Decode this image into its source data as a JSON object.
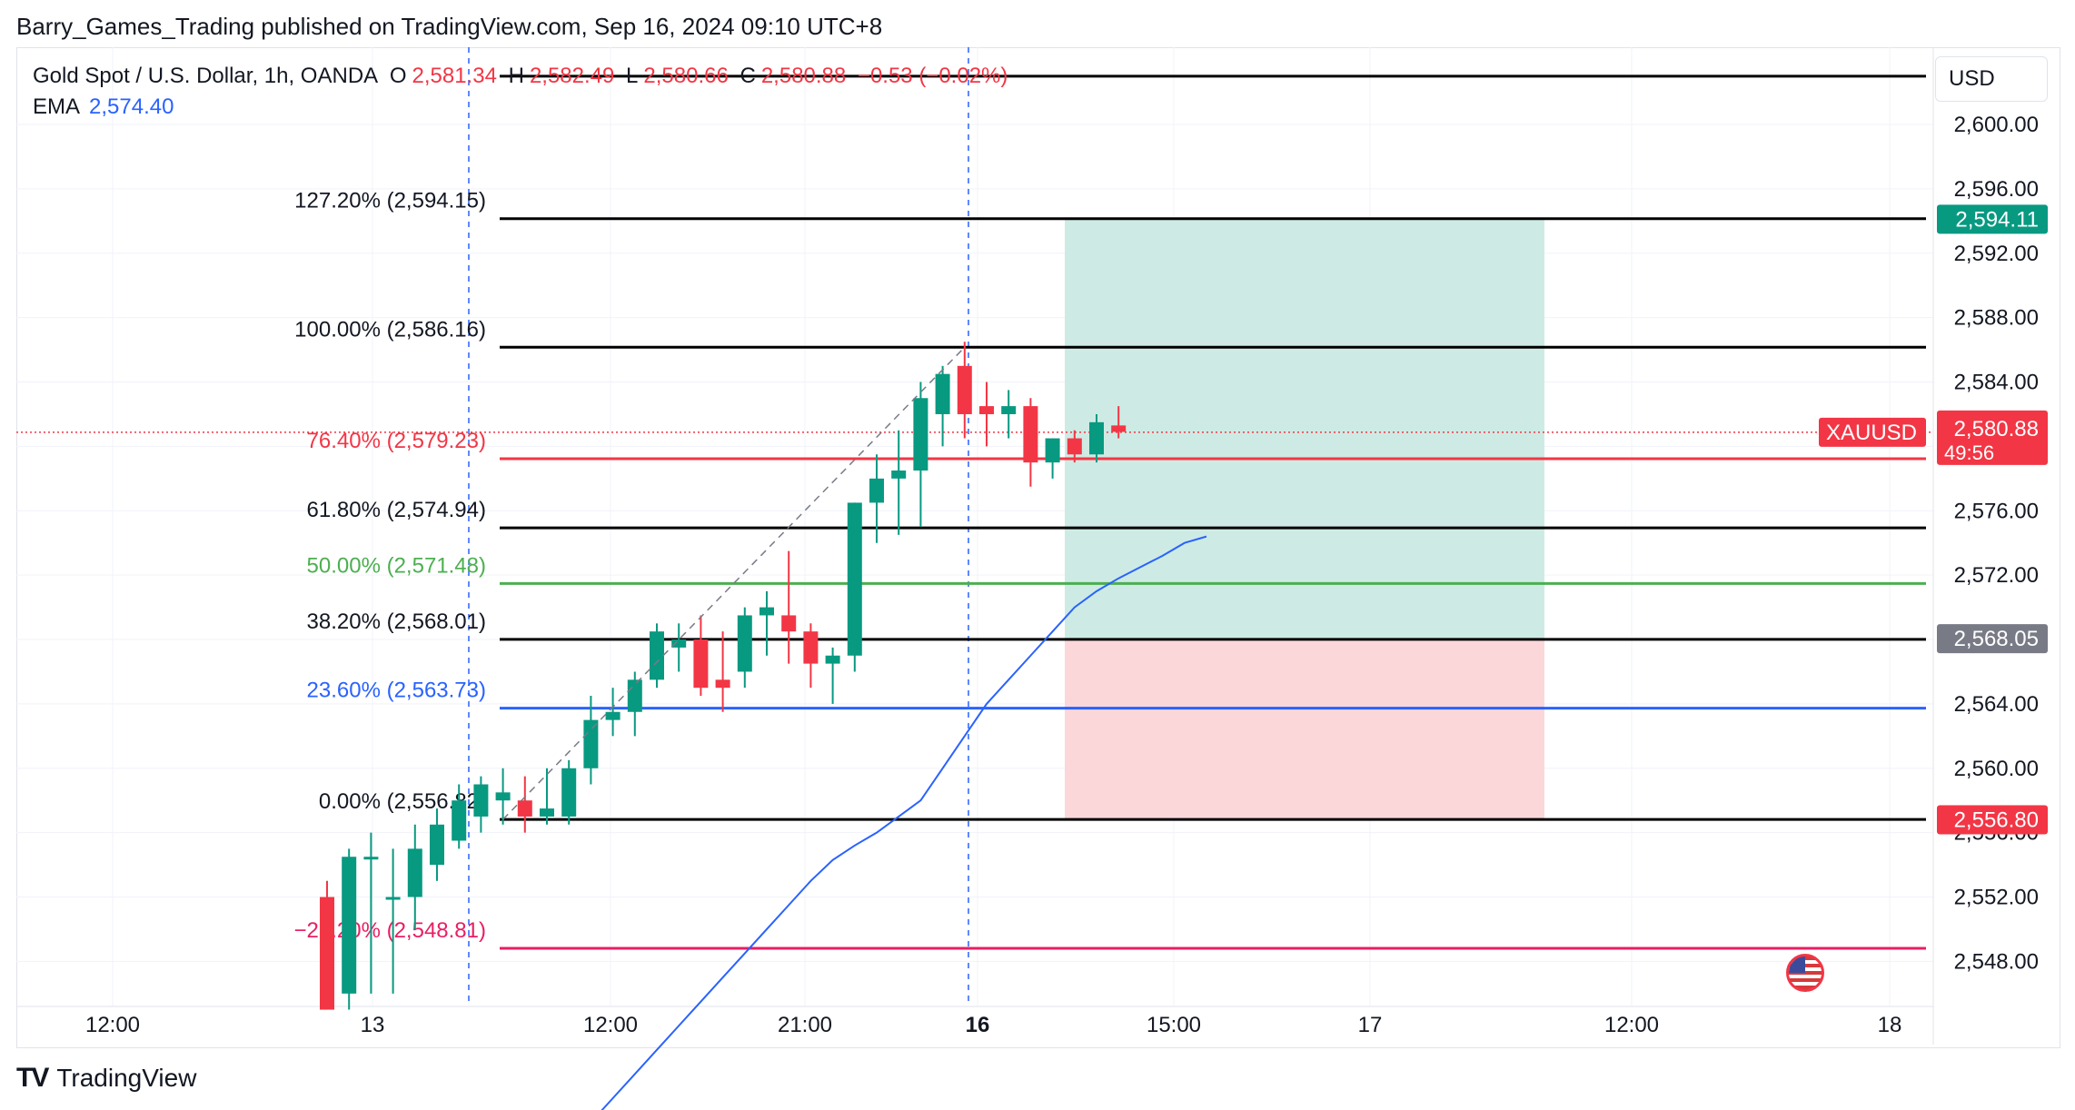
{
  "publisher_line": "Barry_Games_Trading published on TradingView.com, Sep 16, 2024 09:10 UTC+8",
  "header": {
    "symbol": "Gold Spot / U.S. Dollar, 1h, OANDA",
    "o_label": "O",
    "o_value": "2,581.34",
    "h_label": "H",
    "h_value": "2,582.49",
    "l_label": "L",
    "l_value": "2,580.66",
    "c_label": "C",
    "c_value": "2,580.88",
    "change": "−0.53 (−0.02%)"
  },
  "ema": {
    "label": "EMA",
    "value": "2,574.40"
  },
  "currency_button": "USD",
  "footer_brand": "TradingView",
  "colors": {
    "up": "#089981",
    "down": "#f23645",
    "ema": "#2962ff",
    "profit_zone": "#cdebe4",
    "loss_zone": "#fbd7da",
    "fib_black": "#000000",
    "fib_red": "#f23645",
    "fib_green": "#4caf50",
    "fib_blue": "#2962ff",
    "fib_pink": "#e91e63"
  },
  "chart_data": {
    "type": "candlestick",
    "ylim": [
      2545.2,
      2604.8
    ],
    "x_ticks": [
      "12:00",
      "13",
      "12:00",
      "21:00",
      "16",
      "15:00",
      "17",
      "12:00",
      "18"
    ],
    "y_ticks": [
      "2,548.00",
      "2,552.00",
      "2,556.00",
      "2,560.00",
      "2,564.00",
      "2,568.00",
      "2,572.00",
      "2,576.00",
      "2,580.00",
      "2,584.00",
      "2,588.00",
      "2,592.00",
      "2,596.00",
      "2,600.00"
    ],
    "candles": [
      {
        "o": 2552.0,
        "h": 2553.0,
        "l": 2545.0,
        "c": 2545.0
      },
      {
        "o": 2546.0,
        "h": 2555.0,
        "l": 2545.0,
        "c": 2554.5
      },
      {
        "o": 2554.5,
        "h": 2556.0,
        "l": 2546.0,
        "c": 2554.5
      },
      {
        "o": 2552.0,
        "h": 2555.0,
        "l": 2546.0,
        "c": 2552.0
      },
      {
        "o": 2552.0,
        "h": 2556.5,
        "l": 2550.0,
        "c": 2555.0
      },
      {
        "o": 2554.0,
        "h": 2557.5,
        "l": 2553.0,
        "c": 2556.5
      },
      {
        "o": 2555.5,
        "h": 2559.0,
        "l": 2555.0,
        "c": 2558.0
      },
      {
        "o": 2557.0,
        "h": 2559.5,
        "l": 2556.0,
        "c": 2559.0
      },
      {
        "o": 2558.0,
        "h": 2560.0,
        "l": 2556.5,
        "c": 2558.5
      },
      {
        "o": 2558.0,
        "h": 2559.5,
        "l": 2556.0,
        "c": 2557.0
      },
      {
        "o": 2557.0,
        "h": 2560.0,
        "l": 2556.5,
        "c": 2557.5
      },
      {
        "o": 2557.0,
        "h": 2560.5,
        "l": 2556.5,
        "c": 2560.0
      },
      {
        "o": 2560.0,
        "h": 2564.5,
        "l": 2559.0,
        "c": 2563.0
      },
      {
        "o": 2563.0,
        "h": 2565.0,
        "l": 2562.0,
        "c": 2563.5
      },
      {
        "o": 2563.5,
        "h": 2566.0,
        "l": 2562.0,
        "c": 2565.5
      },
      {
        "o": 2565.5,
        "h": 2569.0,
        "l": 2565.0,
        "c": 2568.5
      },
      {
        "o": 2567.5,
        "h": 2569.0,
        "l": 2566.0,
        "c": 2568.0
      },
      {
        "o": 2568.0,
        "h": 2569.5,
        "l": 2564.5,
        "c": 2565.0
      },
      {
        "o": 2565.5,
        "h": 2568.5,
        "l": 2563.5,
        "c": 2565.0
      },
      {
        "o": 2566.0,
        "h": 2570.0,
        "l": 2565.0,
        "c": 2569.5
      },
      {
        "o": 2569.5,
        "h": 2571.0,
        "l": 2567.0,
        "c": 2570.0
      },
      {
        "o": 2569.5,
        "h": 2573.5,
        "l": 2566.5,
        "c": 2568.5
      },
      {
        "o": 2568.5,
        "h": 2569.0,
        "l": 2565.0,
        "c": 2566.5
      },
      {
        "o": 2566.5,
        "h": 2567.5,
        "l": 2564.0,
        "c": 2567.0
      },
      {
        "o": 2567.0,
        "h": 2576.5,
        "l": 2566.0,
        "c": 2576.5
      },
      {
        "o": 2576.5,
        "h": 2579.5,
        "l": 2574.0,
        "c": 2578.0
      },
      {
        "o": 2578.0,
        "h": 2581.0,
        "l": 2574.5,
        "c": 2578.5
      },
      {
        "o": 2578.5,
        "h": 2584.0,
        "l": 2575.0,
        "c": 2583.0
      },
      {
        "o": 2582.0,
        "h": 2585.0,
        "l": 2580.0,
        "c": 2584.5
      },
      {
        "o": 2585.0,
        "h": 2586.5,
        "l": 2580.5,
        "c": 2582.0
      },
      {
        "o": 2582.5,
        "h": 2584.0,
        "l": 2580.0,
        "c": 2582.0
      },
      {
        "o": 2582.0,
        "h": 2583.5,
        "l": 2580.5,
        "c": 2582.5
      },
      {
        "o": 2582.5,
        "h": 2583.0,
        "l": 2577.5,
        "c": 2579.0
      },
      {
        "o": 2579.0,
        "h": 2580.5,
        "l": 2578.0,
        "c": 2580.5
      },
      {
        "o": 2580.5,
        "h": 2581.0,
        "l": 2579.0,
        "c": 2579.5
      },
      {
        "o": 2579.5,
        "h": 2582.0,
        "l": 2579.0,
        "c": 2581.5
      },
      {
        "o": 2581.3,
        "h": 2582.5,
        "l": 2580.5,
        "c": 2580.9
      }
    ],
    "ema": [
      2538.0,
      2539.5,
      2541.0,
      2542.5,
      2544.0,
      2545.5,
      2547.0,
      2548.5,
      2550.0,
      2551.5,
      2553.0,
      2554.3,
      2555.2,
      2556.0,
      2557.0,
      2558.0,
      2560.0,
      2562.0,
      2564.0,
      2565.5,
      2567.0,
      2568.5,
      2570.0,
      2571.0,
      2571.8,
      2572.5,
      2573.2,
      2574.0,
      2574.4
    ],
    "fib_levels": [
      {
        "label": "127.20% (2,594.15)",
        "value": 2594.15,
        "color": "#000000"
      },
      {
        "label": "100.00% (2,586.16)",
        "value": 2586.16,
        "color": "#000000"
      },
      {
        "label": "76.40% (2,579.23)",
        "value": 2579.23,
        "color": "#f23645"
      },
      {
        "label": "61.80% (2,574.94)",
        "value": 2574.94,
        "color": "#000000"
      },
      {
        "label": "50.00% (2,571.48)",
        "value": 2571.48,
        "color": "#4caf50"
      },
      {
        "label": "38.20% (2,568.01)",
        "value": 2568.01,
        "color": "#000000"
      },
      {
        "label": "23.60% (2,563.73)",
        "value": 2563.73,
        "color": "#2962ff"
      },
      {
        "label": "0.00% (2,556.82)",
        "value": 2556.82,
        "color": "#000000"
      },
      {
        "label": "−27.20% (2,548.81)",
        "value": 2548.81,
        "color": "#e91e63"
      }
    ],
    "top_line_value": 2603.0,
    "position": {
      "entry": 2568.05,
      "target": 2594.11,
      "stop": 2556.8
    },
    "price_labels": [
      {
        "text": "2,594.11",
        "value": 2594.11,
        "bg": "#089981"
      },
      {
        "text": "2,568.05",
        "value": 2568.05,
        "bg": "#787b86"
      },
      {
        "text": "2,556.80",
        "value": 2556.8,
        "bg": "#f23645"
      }
    ],
    "last_price": {
      "symbol": "XAUUSD",
      "text": "2,580.88",
      "countdown": "49:56",
      "value": 2580.88
    }
  }
}
